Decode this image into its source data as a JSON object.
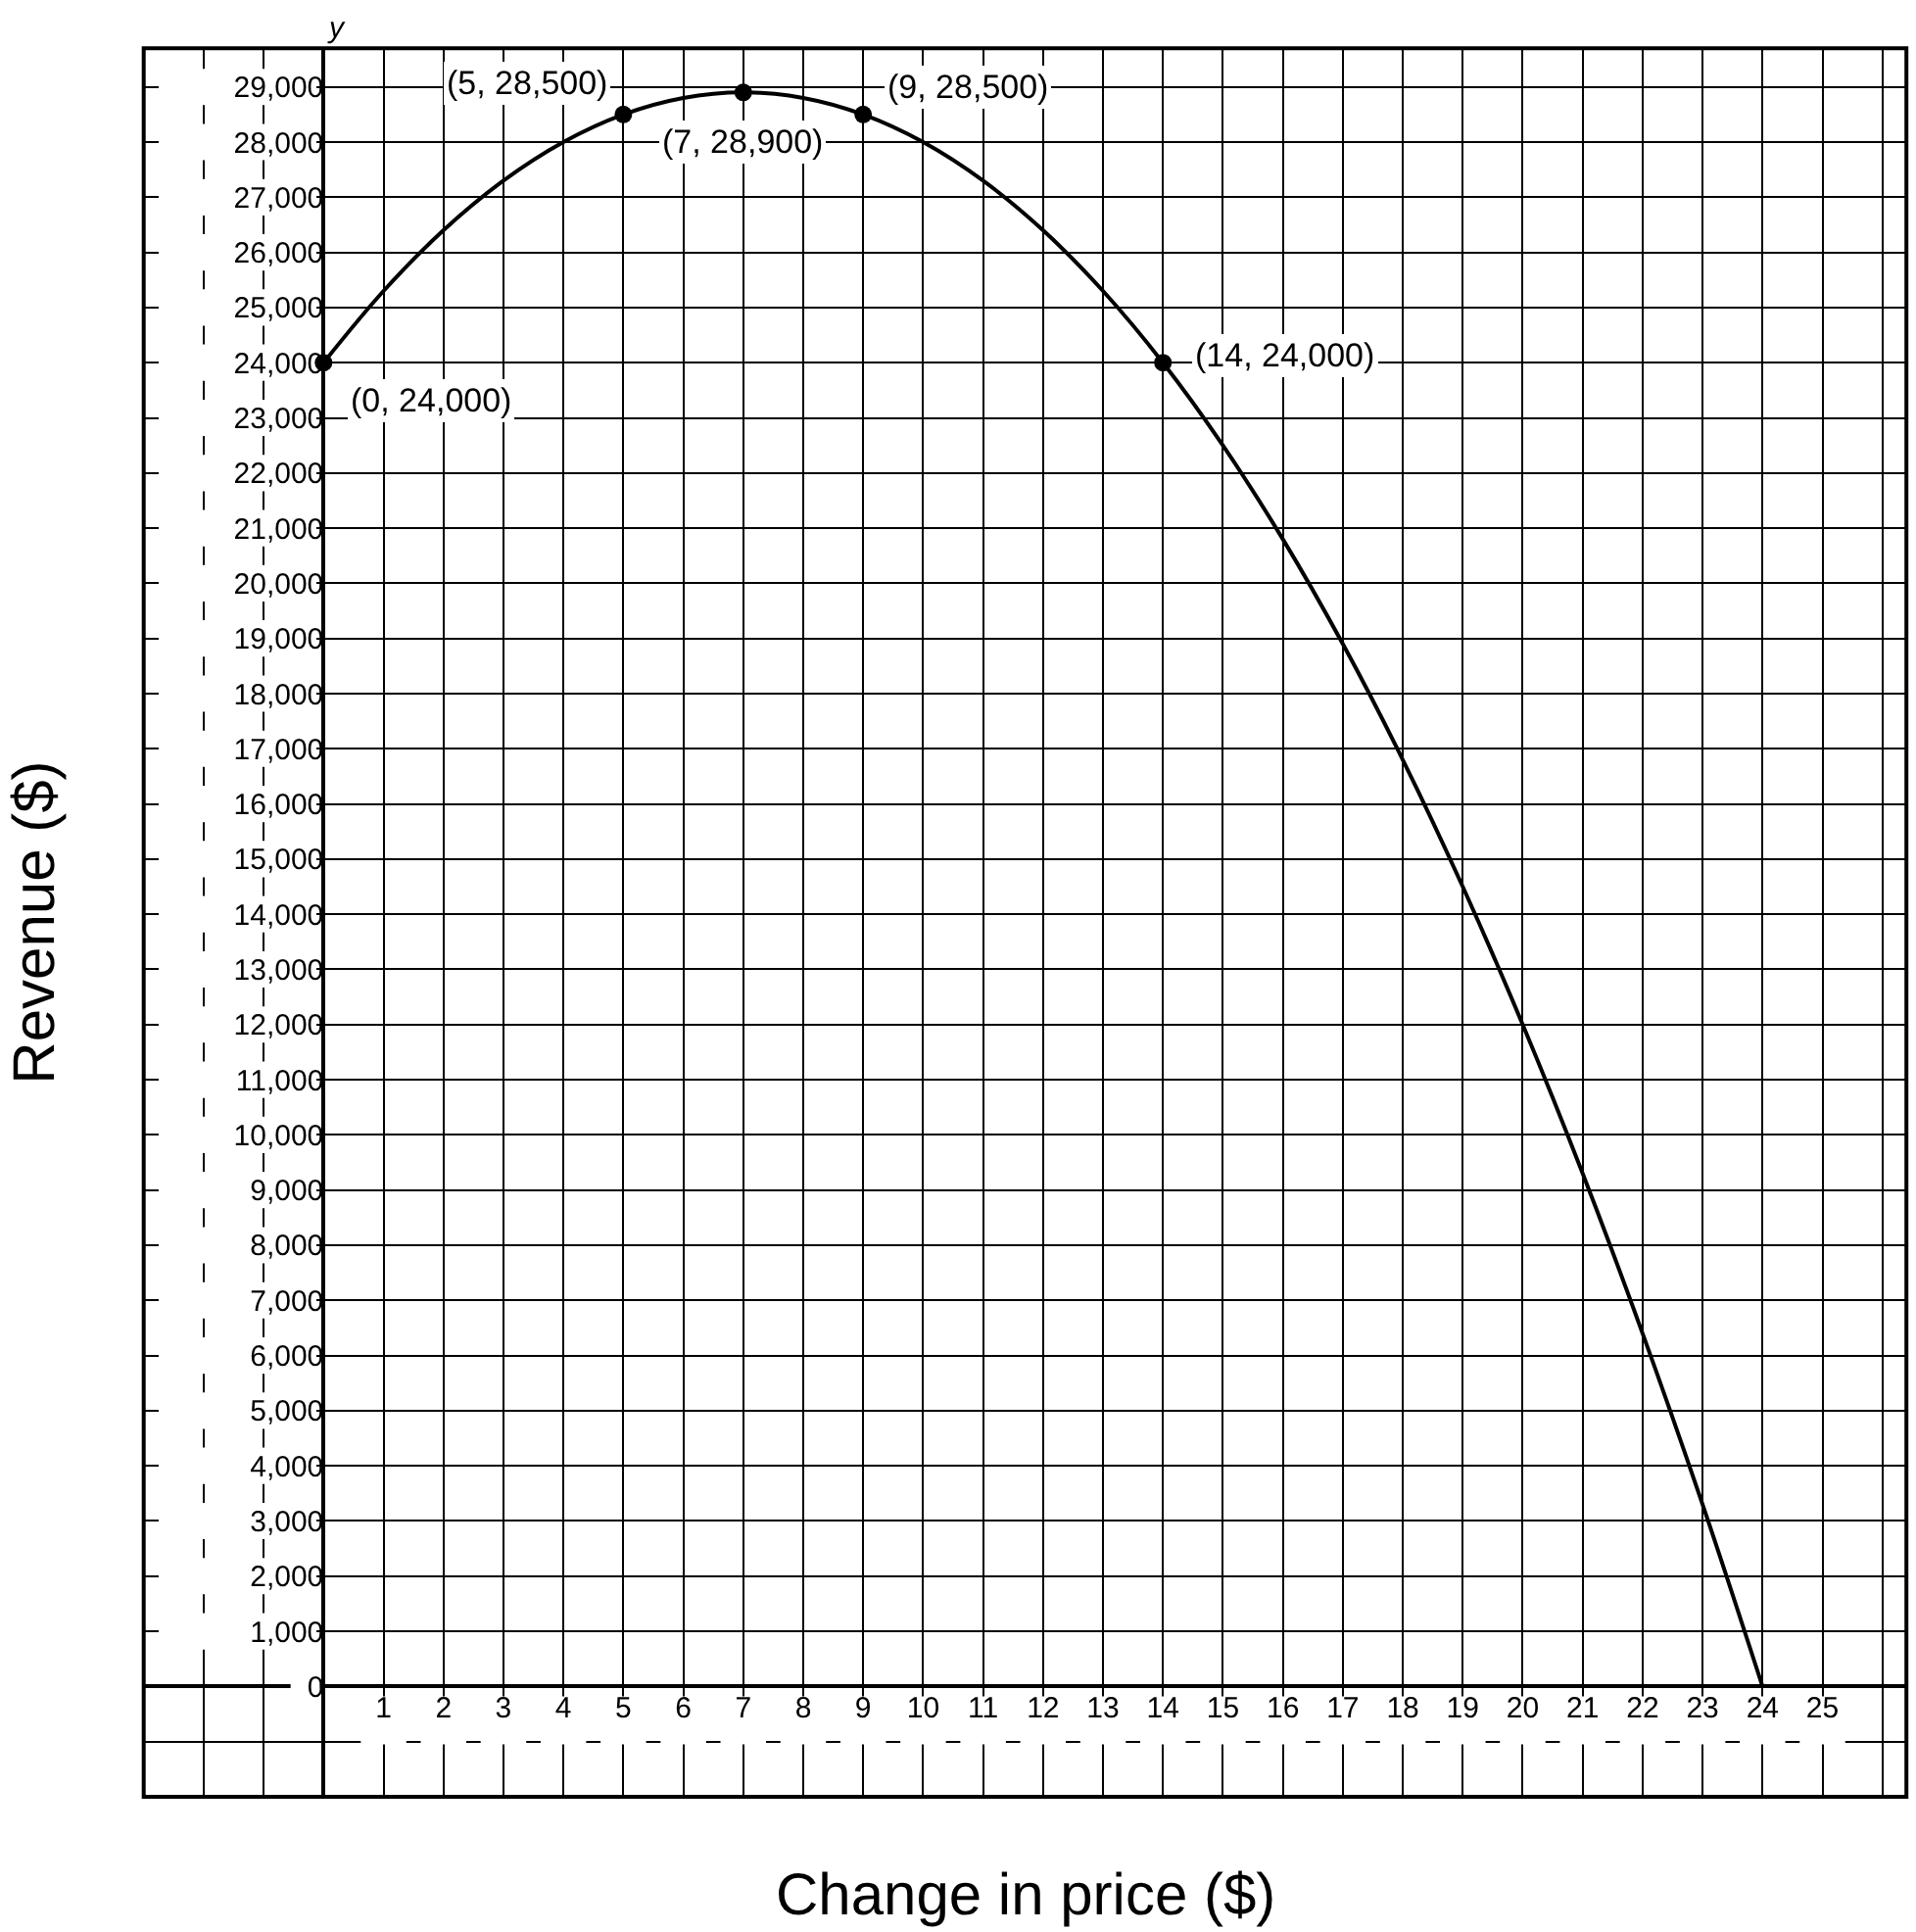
{
  "chart_data": {
    "type": "line",
    "xlabel": "Change in price ($)",
    "ylabel": "Revenue ($)",
    "annotations": [
      "y",
      {
        "text": "(0, 24,000)",
        "x": 0,
        "y": 24000
      },
      {
        "text": "(5, 28,500)",
        "x": 5,
        "y": 28500
      },
      {
        "text": "(7, 28,900)",
        "x": 7,
        "y": 28900
      },
      {
        "text": "(9, 28,500)",
        "x": 9,
        "y": 28500
      },
      {
        "text": "(14, 24,000)",
        "x": 14,
        "y": 24000
      }
    ],
    "series": [
      {
        "color": "#000000",
        "marker": "none",
        "x": [
          0,
          1,
          2,
          3,
          4,
          5,
          6,
          7,
          8,
          9,
          10,
          11,
          12,
          13,
          14,
          15,
          16,
          17,
          18,
          19,
          20,
          21,
          22,
          23,
          24
        ],
        "values": [
          24000,
          25300,
          26400,
          27300,
          28000,
          28500,
          28800,
          28900,
          28800,
          28500,
          28000,
          27300,
          26400,
          25300,
          24000,
          22500,
          20800,
          18900,
          16800,
          14500,
          12000,
          9300,
          6400,
          3300,
          0
        ]
      },
      {
        "type": "scatter",
        "color": "#000000",
        "marker": "circle",
        "x": [
          0,
          5,
          7,
          9,
          14
        ],
        "values": [
          24000,
          28500,
          28900,
          28500,
          24000
        ]
      }
    ],
    "xlim": [
      -3,
      26.4
    ],
    "ylim": [
      -2000,
      29700
    ],
    "xticks": [
      {
        "value": -3,
        "label": null
      },
      {
        "value": -2,
        "label": null
      },
      {
        "value": -1,
        "label": null
      },
      1,
      2,
      3,
      4,
      5,
      6,
      7,
      8,
      9,
      10,
      11,
      12,
      13,
      14,
      15,
      16,
      17,
      18,
      19,
      20,
      21,
      22,
      23,
      24,
      25,
      {
        "value": 26,
        "label": null
      }
    ],
    "yticks": [
      {
        "value": -2000,
        "label": null
      },
      {
        "value": -1000,
        "label": null
      },
      0,
      {
        "value": 1000,
        "label": "1,000"
      },
      {
        "value": 2000,
        "label": "2,000"
      },
      {
        "value": 3000,
        "label": "3,000"
      },
      {
        "value": 4000,
        "label": "4,000"
      },
      {
        "value": 5000,
        "label": "5,000"
      },
      {
        "value": 6000,
        "label": "6,000"
      },
      {
        "value": 7000,
        "label": "7,000"
      },
      {
        "value": 8000,
        "label": "8,000"
      },
      {
        "value": 9000,
        "label": "9,000"
      },
      {
        "value": 10000,
        "label": "10,000"
      },
      {
        "value": 11000,
        "label": "11,000"
      },
      {
        "value": 12000,
        "label": "12,000"
      },
      {
        "value": 13000,
        "label": "13,000"
      },
      {
        "value": 14000,
        "label": "14,000"
      },
      {
        "value": 15000,
        "label": "15,000"
      },
      {
        "value": 16000,
        "label": "16,000"
      },
      {
        "value": 17000,
        "label": "17,000"
      },
      {
        "value": 18000,
        "label": "18,000"
      },
      {
        "value": 19000,
        "label": "19,000"
      },
      {
        "value": 20000,
        "label": "20,000"
      },
      {
        "value": 21000,
        "label": "21,000"
      },
      {
        "value": 22000,
        "label": "22,000"
      },
      {
        "value": 23000,
        "label": "23,000"
      },
      {
        "value": 24000,
        "label": "24,000"
      },
      {
        "value": 25000,
        "label": "25,000"
      },
      {
        "value": 26000,
        "label": "26,000"
      },
      {
        "value": 27000,
        "label": "27,000"
      },
      {
        "value": 28000,
        "label": "28,000"
      },
      {
        "value": 29000,
        "label": "29,000"
      }
    ],
    "grid": true
  }
}
